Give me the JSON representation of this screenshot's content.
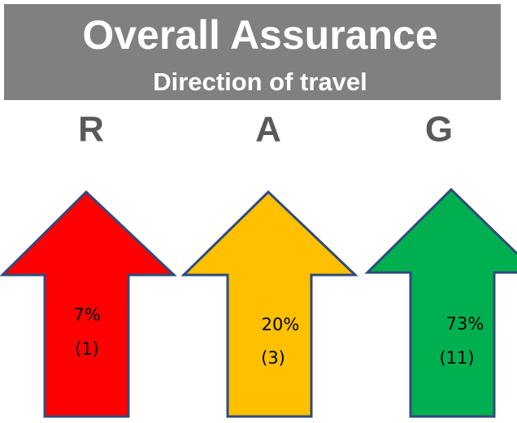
{
  "header": {
    "title": "Overall Assurance",
    "subtitle": "Direction of travel"
  },
  "items": [
    {
      "letter": "R",
      "percent": "7%",
      "count": "(1)"
    },
    {
      "letter": "A",
      "percent": "20%",
      "count": "(3)"
    },
    {
      "letter": "G",
      "percent": "73%",
      "count": "(11)"
    }
  ]
}
